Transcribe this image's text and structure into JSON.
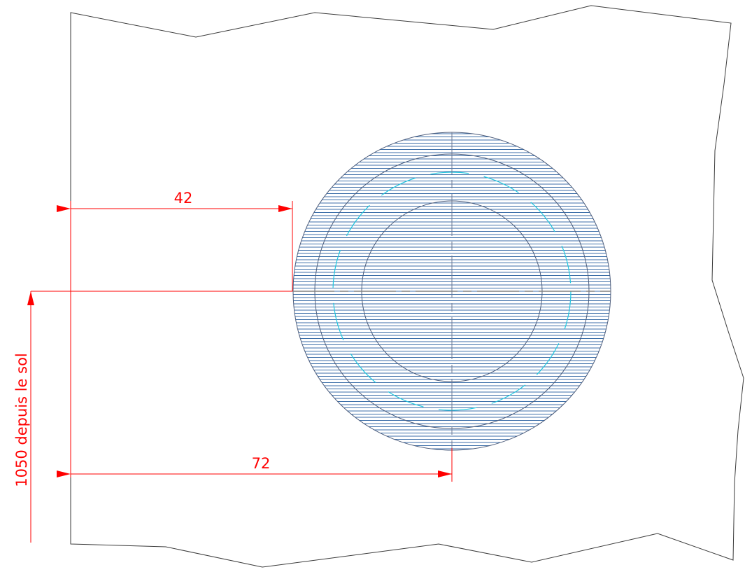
{
  "drawing": {
    "dimensions": {
      "top_width": "42",
      "bottom_width": "72",
      "height_note": "1050 depuis le sol"
    },
    "colors": {
      "outline": "#3a3a3a",
      "hatch": "#3c6ea8",
      "circle": "#4d5d7c",
      "dashed_circle": "#1fc8e0",
      "centerline": "#808080",
      "dimension": "#ff0000"
    }
  }
}
